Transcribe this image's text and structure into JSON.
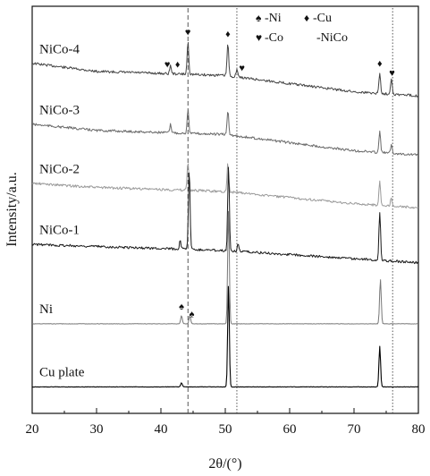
{
  "chart_data": {
    "type": "line",
    "title": "",
    "xlabel": "2θ/(°)",
    "ylabel": "Intensity/a.u.",
    "xlim": [
      20,
      80
    ],
    "x_ticks": [
      20,
      30,
      40,
      50,
      60,
      70,
      80
    ],
    "x_tick_labels": [
      "20",
      "30",
      "40",
      "50",
      "60",
      "70",
      "80"
    ],
    "grid": false,
    "legend_position": "top-right",
    "legend": [
      {
        "symbol": "spade",
        "text": "-Ni"
      },
      {
        "symbol": "diamond",
        "text": "-Cu"
      },
      {
        "symbol": "heart",
        "text": "-Co"
      },
      {
        "symbol": "none",
        "text": "-NiCo"
      }
    ],
    "reference_lines": [
      {
        "x": 44.2,
        "style": "dashed"
      },
      {
        "x": 51.8,
        "style": "dotted"
      },
      {
        "x": 76.0,
        "style": "dotted"
      }
    ],
    "series": [
      {
        "name": "NiCo-4",
        "color": "#444444",
        "baseline": [
          [
            20,
            0.14
          ],
          [
            30,
            0.16
          ],
          [
            40,
            0.165
          ],
          [
            50,
            0.17
          ],
          [
            60,
            0.19
          ],
          [
            70,
            0.21
          ],
          [
            80,
            0.22
          ]
        ],
        "peaks": [
          {
            "x": 41.5,
            "h": 0.02
          },
          {
            "x": 44.2,
            "h": 0.08
          },
          {
            "x": 50.4,
            "h": 0.08
          },
          {
            "x": 51.8,
            "h": 0.02
          },
          {
            "x": 74.0,
            "h": 0.05
          },
          {
            "x": 75.8,
            "h": 0.04
          }
        ],
        "markers": [
          {
            "x": 41.0,
            "symbol": "heart"
          },
          {
            "x": 42.6,
            "symbol": "diamond"
          },
          {
            "x": 44.2,
            "symbol": "heart"
          },
          {
            "x": 50.4,
            "symbol": "diamond"
          },
          {
            "x": 52.6,
            "symbol": "heart"
          },
          {
            "x": 74.0,
            "symbol": "diamond"
          },
          {
            "x": 75.9,
            "symbol": "heart"
          }
        ]
      },
      {
        "name": "NiCo-3",
        "color": "#6a6a6a",
        "baseline": [
          [
            20,
            0.29
          ],
          [
            30,
            0.305
          ],
          [
            40,
            0.31
          ],
          [
            50,
            0.315
          ],
          [
            60,
            0.335
          ],
          [
            70,
            0.355
          ],
          [
            80,
            0.365
          ]
        ],
        "peaks": [
          {
            "x": 41.5,
            "h": 0.02
          },
          {
            "x": 44.2,
            "h": 0.06
          },
          {
            "x": 50.4,
            "h": 0.06
          },
          {
            "x": 74.0,
            "h": 0.05
          },
          {
            "x": 75.8,
            "h": 0.02
          }
        ],
        "markers": []
      },
      {
        "name": "NiCo-2",
        "color": "#9a9a9a",
        "baseline": [
          [
            20,
            0.435
          ],
          [
            30,
            0.445
          ],
          [
            40,
            0.45
          ],
          [
            50,
            0.455
          ],
          [
            60,
            0.47
          ],
          [
            70,
            0.485
          ],
          [
            80,
            0.495
          ]
        ],
        "peaks": [
          {
            "x": 44.2,
            "h": 0.07
          },
          {
            "x": 50.4,
            "h": 0.07
          },
          {
            "x": 74.0,
            "h": 0.06
          },
          {
            "x": 75.8,
            "h": 0.02
          }
        ],
        "markers": []
      },
      {
        "name": "NiCo-1",
        "color": "#1a1a1a",
        "baseline": [
          [
            20,
            0.585
          ],
          [
            30,
            0.59
          ],
          [
            40,
            0.595
          ],
          [
            50,
            0.6
          ],
          [
            60,
            0.61
          ],
          [
            70,
            0.62
          ],
          [
            80,
            0.63
          ]
        ],
        "peaks": [
          {
            "x": 43.0,
            "h": 0.02
          },
          {
            "x": 44.4,
            "h": 0.2
          },
          {
            "x": 50.5,
            "h": 0.21
          },
          {
            "x": 52.0,
            "h": 0.02
          },
          {
            "x": 74.0,
            "h": 0.12
          }
        ],
        "markers": []
      },
      {
        "name": "Ni",
        "color": "#777777",
        "baseline": [
          [
            20,
            0.78
          ],
          [
            30,
            0.78
          ],
          [
            40,
            0.78
          ],
          [
            50,
            0.78
          ],
          [
            60,
            0.78
          ],
          [
            70,
            0.78
          ],
          [
            80,
            0.78
          ]
        ],
        "peaks": [
          {
            "x": 43.2,
            "h": 0.02
          },
          {
            "x": 44.5,
            "h": 0.02
          },
          {
            "x": 50.5,
            "h": 0.28
          },
          {
            "x": 74.1,
            "h": 0.11
          }
        ],
        "markers": [
          {
            "x": 43.2,
            "symbol": "spade"
          },
          {
            "x": 44.8,
            "symbol": "spade"
          }
        ]
      },
      {
        "name": "Cu plate",
        "color": "#000000",
        "baseline": [
          [
            20,
            0.935
          ],
          [
            30,
            0.935
          ],
          [
            40,
            0.935
          ],
          [
            50,
            0.935
          ],
          [
            60,
            0.935
          ],
          [
            70,
            0.935
          ],
          [
            80,
            0.935
          ]
        ],
        "peaks": [
          {
            "x": 43.2,
            "h": 0.01
          },
          {
            "x": 50.5,
            "h": 0.25
          },
          {
            "x": 74.0,
            "h": 0.1
          }
        ],
        "markers": []
      }
    ]
  }
}
